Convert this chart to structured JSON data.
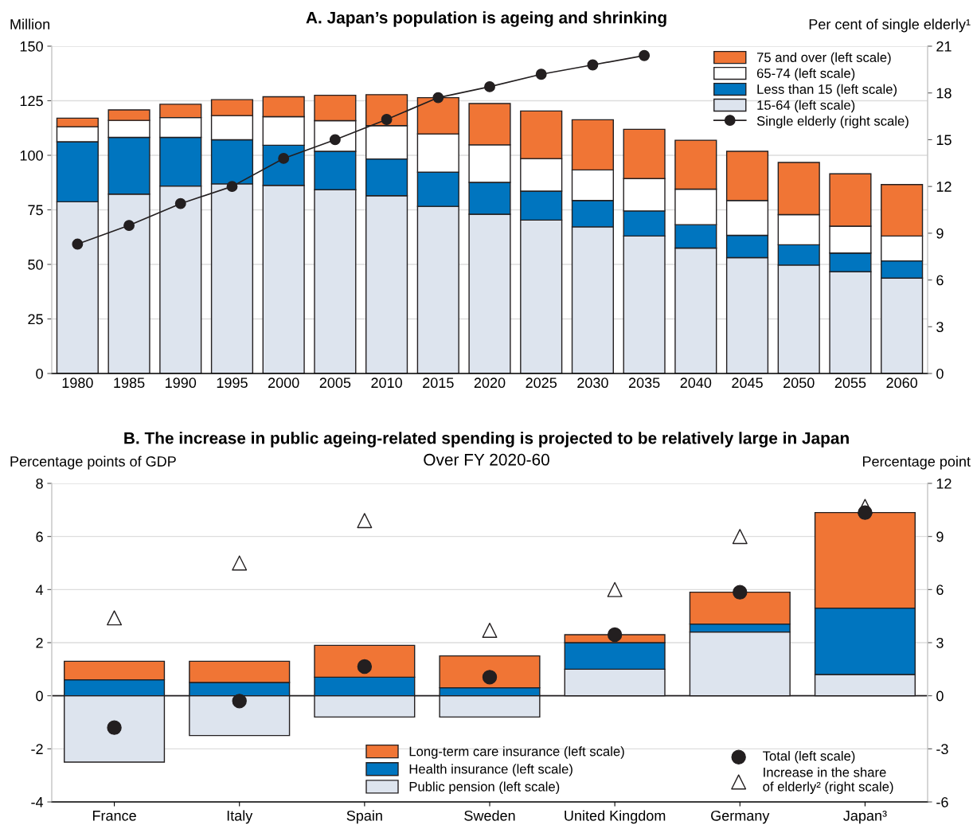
{
  "chart_data": [
    {
      "type": "bar",
      "title": "A. Japan’s population is ageing and shrinking",
      "ylabel": "Million",
      "y2label": "Per cent of single elderly¹",
      "categories": [
        "1980",
        "1985",
        "1990",
        "1995",
        "2000",
        "2005",
        "2010",
        "2015",
        "2020",
        "2025",
        "2030",
        "2035",
        "2040",
        "2045",
        "2050",
        "2055",
        "2060"
      ],
      "stacked": true,
      "ylim": [
        0,
        150
      ],
      "yticks": [
        0,
        25,
        50,
        75,
        100,
        125,
        150
      ],
      "y2lim": [
        0,
        21
      ],
      "y2ticks": [
        0,
        3,
        6,
        9,
        12,
        15,
        18,
        21
      ],
      "grid": "y",
      "legend": "top right",
      "series": [
        {
          "name": "15-64 (left scale)",
          "color": "#dde4ee",
          "values": [
            78.7,
            82.2,
            85.9,
            86.9,
            86.2,
            84.2,
            81.5,
            76.6,
            73.0,
            70.3,
            67.2,
            63.0,
            57.5,
            53.1,
            49.7,
            46.6,
            43.7
          ]
        },
        {
          "name": "Less than 15 (left scale)",
          "color": "#0075bf",
          "values": [
            27.5,
            26.0,
            22.3,
            20.2,
            18.4,
            17.6,
            16.8,
            15.7,
            14.6,
            13.3,
            12.1,
            11.5,
            10.7,
            10.2,
            9.3,
            8.6,
            7.9
          ]
        },
        {
          "name": "65-74 (left scale)",
          "color": "#ffffff",
          "values": [
            6.9,
            7.8,
            9.1,
            11.1,
            13.1,
            14.1,
            15.3,
            17.5,
            17.2,
            14.9,
            14.0,
            14.8,
            16.3,
            16.0,
            13.8,
            12.3,
            11.4
          ]
        },
        {
          "name": "75 and over (left scale)",
          "color": "#f07535",
          "values": [
            3.9,
            4.8,
            6.1,
            7.3,
            9.1,
            11.6,
            14.2,
            16.6,
            18.9,
            21.8,
            23.0,
            22.6,
            22.4,
            22.5,
            23.9,
            24.0,
            23.6
          ]
        },
        {
          "name": "Single elderly (right scale)",
          "type": "line",
          "axis": "y2",
          "marker": "circle",
          "line_style": "solid",
          "color": "#231f20",
          "values": [
            8.3,
            9.5,
            10.9,
            12.0,
            13.8,
            15.0,
            16.3,
            17.7,
            18.4,
            19.2,
            19.8,
            20.4,
            null,
            null,
            null,
            null,
            null
          ]
        }
      ]
    },
    {
      "type": "bar",
      "title": "B. The increase in public ageing-related spending is projected to be relatively large in Japan",
      "subtitle": "Over FY 2020-60",
      "ylabel": "Percentage points of GDP",
      "y2label": "Percentage point",
      "categories": [
        "France",
        "Italy",
        "Spain",
        "Sweden",
        "United Kingdom",
        "Germany",
        "Japan³"
      ],
      "stacked": true,
      "ylim": [
        -4,
        8
      ],
      "yticks": [
        -4,
        -2,
        0,
        2,
        4,
        6,
        8
      ],
      "y2lim": [
        -6,
        12
      ],
      "y2ticks": [
        -6,
        -3,
        0,
        3,
        6,
        9,
        12
      ],
      "grid": "y",
      "legend": "bottom",
      "ref_lines": [
        {
          "axis": "y",
          "value": 0,
          "color": "#231f20"
        }
      ],
      "series": [
        {
          "name": "Public pension (left scale)",
          "color": "#dde4ee",
          "values": [
            -2.5,
            -1.5,
            -0.8,
            -0.8,
            1.0,
            2.4,
            0.8
          ]
        },
        {
          "name": "Health insurance (left scale)",
          "color": "#0075bf",
          "values": [
            0.6,
            0.5,
            0.7,
            0.3,
            1.0,
            0.3,
            2.5
          ]
        },
        {
          "name": "Long-term care insurance (left scale)",
          "color": "#f07535",
          "values": [
            0.7,
            0.8,
            1.2,
            1.2,
            0.3,
            1.2,
            3.6
          ]
        },
        {
          "name": "Total (left scale)",
          "type": "scatter",
          "marker": "circle",
          "color": "#231f20",
          "values": [
            -1.2,
            -0.2,
            1.1,
            0.7,
            2.3,
            3.9,
            6.9
          ]
        },
        {
          "name": "Increase in the share\nof elderly² (right scale)",
          "type": "scatter",
          "axis": "y2",
          "marker": "triangle",
          "color": "#ffffff",
          "values": [
            4.4,
            7.5,
            9.9,
            3.7,
            6.0,
            9.0,
            10.7
          ]
        }
      ]
    }
  ]
}
